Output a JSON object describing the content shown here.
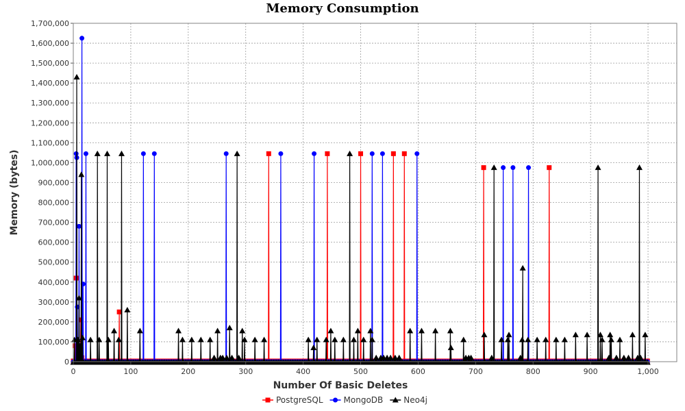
{
  "chart_data": {
    "type": "line",
    "title": "Memory Consumption",
    "xlabel": "Number Of Basic Deletes",
    "ylabel": "Memory (bytes)",
    "xlim": [
      0,
      1050
    ],
    "ylim": [
      0,
      1700000
    ],
    "x_ticks": [
      0,
      100,
      200,
      300,
      400,
      500,
      600,
      700,
      800,
      900,
      1000
    ],
    "x_tick_labels": [
      "0",
      "100",
      "200",
      "300",
      "400",
      "500",
      "600",
      "700",
      "800",
      "900",
      "1,000"
    ],
    "y_ticks": [
      0,
      100000,
      200000,
      300000,
      400000,
      500000,
      600000,
      700000,
      800000,
      900000,
      1000000,
      1100000,
      1200000,
      1300000,
      1400000,
      1500000,
      1600000,
      1700000
    ],
    "y_tick_labels": [
      "0",
      "100,000",
      "200,000",
      "300,000",
      "400,000",
      "500,000",
      "600,000",
      "700,000",
      "800,000",
      "900,000",
      "1,000,000",
      "1,100,000",
      "1,200,000",
      "1,300,000",
      "1,400,000",
      "1,500,000",
      "1,600,000",
      "1,700,000"
    ],
    "grid": true,
    "legend_position": "bottom",
    "series": [
      {
        "name": "PostgreSQL",
        "color": "#ff0000",
        "marker": "square",
        "spikes": [
          [
            3,
            80000
          ],
          [
            5,
            420000
          ],
          [
            7,
            60000
          ],
          [
            9,
            30000
          ],
          [
            11,
            70000
          ],
          [
            13,
            210000
          ],
          [
            15,
            20000
          ],
          [
            80,
            250000
          ],
          [
            340,
            1045000
          ],
          [
            442,
            1045000
          ],
          [
            500,
            1045000
          ],
          [
            557,
            1045000
          ],
          [
            576,
            1045000
          ],
          [
            714,
            975000
          ],
          [
            828,
            975000
          ]
        ]
      },
      {
        "name": "MongoDB",
        "color": "#0000ff",
        "marker": "circle",
        "spikes": [
          [
            5,
            1045000
          ],
          [
            6,
            1025000
          ],
          [
            7,
            275000
          ],
          [
            10,
            680000
          ],
          [
            12,
            50000
          ],
          [
            15,
            1625000
          ],
          [
            17,
            390000
          ],
          [
            22,
            1045000
          ],
          [
            122,
            1045000
          ],
          [
            141,
            1045000
          ],
          [
            266,
            1045000
          ],
          [
            361,
            1045000
          ],
          [
            419,
            1045000
          ],
          [
            520,
            1045000
          ],
          [
            538,
            1045000
          ],
          [
            598,
            1045000
          ],
          [
            748,
            975000
          ],
          [
            765,
            975000
          ],
          [
            792,
            975000
          ]
        ]
      },
      {
        "name": "Neo4j",
        "color": "#000000",
        "marker": "triangle",
        "spikes": [
          [
            2,
            110000
          ],
          [
            6,
            1430000
          ],
          [
            8,
            110000
          ],
          [
            10,
            320000
          ],
          [
            12,
            80000
          ],
          [
            14,
            940000
          ],
          [
            16,
            120000
          ],
          [
            30,
            110000
          ],
          [
            42,
            1045000
          ],
          [
            45,
            110000
          ],
          [
            59,
            1045000
          ],
          [
            61,
            110000
          ],
          [
            71,
            155000
          ],
          [
            79,
            110000
          ],
          [
            84,
            1045000
          ],
          [
            94,
            260000
          ],
          [
            116,
            155000
          ],
          [
            183,
            155000
          ],
          [
            190,
            110000
          ],
          [
            206,
            110000
          ],
          [
            222,
            110000
          ],
          [
            238,
            110000
          ],
          [
            245,
            20000
          ],
          [
            251,
            155000
          ],
          [
            256,
            20000
          ],
          [
            260,
            20000
          ],
          [
            267,
            20000
          ],
          [
            272,
            170000
          ],
          [
            276,
            20000
          ],
          [
            285,
            1045000
          ],
          [
            288,
            20000
          ],
          [
            294,
            155000
          ],
          [
            298,
            110000
          ],
          [
            316,
            110000
          ],
          [
            332,
            110000
          ],
          [
            409,
            110000
          ],
          [
            418,
            70000
          ],
          [
            424,
            110000
          ],
          [
            440,
            110000
          ],
          [
            448,
            155000
          ],
          [
            455,
            110000
          ],
          [
            470,
            110000
          ],
          [
            481,
            1045000
          ],
          [
            488,
            110000
          ],
          [
            495,
            155000
          ],
          [
            505,
            110000
          ],
          [
            517,
            155000
          ],
          [
            520,
            110000
          ],
          [
            527,
            20000
          ],
          [
            535,
            20000
          ],
          [
            540,
            20000
          ],
          [
            546,
            20000
          ],
          [
            552,
            20000
          ],
          [
            560,
            20000
          ],
          [
            567,
            20000
          ],
          [
            586,
            155000
          ],
          [
            606,
            155000
          ],
          [
            630,
            155000
          ],
          [
            656,
            155000
          ],
          [
            657,
            70000
          ],
          [
            679,
            110000
          ],
          [
            683,
            20000
          ],
          [
            688,
            20000
          ],
          [
            692,
            20000
          ],
          [
            715,
            135000
          ],
          [
            728,
            20000
          ],
          [
            732,
            975000
          ],
          [
            745,
            110000
          ],
          [
            756,
            110000
          ],
          [
            758,
            135000
          ],
          [
            778,
            20000
          ],
          [
            781,
            110000
          ],
          [
            782,
            470000
          ],
          [
            791,
            110000
          ],
          [
            807,
            110000
          ],
          [
            822,
            110000
          ],
          [
            840,
            110000
          ],
          [
            855,
            110000
          ],
          [
            874,
            135000
          ],
          [
            894,
            135000
          ],
          [
            913,
            975000
          ],
          [
            917,
            135000
          ],
          [
            920,
            110000
          ],
          [
            932,
            20000
          ],
          [
            934,
            135000
          ],
          [
            936,
            110000
          ],
          [
            945,
            20000
          ],
          [
            951,
            110000
          ],
          [
            958,
            20000
          ],
          [
            966,
            20000
          ],
          [
            973,
            135000
          ],
          [
            982,
            20000
          ],
          [
            985,
            975000
          ],
          [
            987,
            20000
          ],
          [
            995,
            135000
          ]
        ]
      }
    ]
  }
}
